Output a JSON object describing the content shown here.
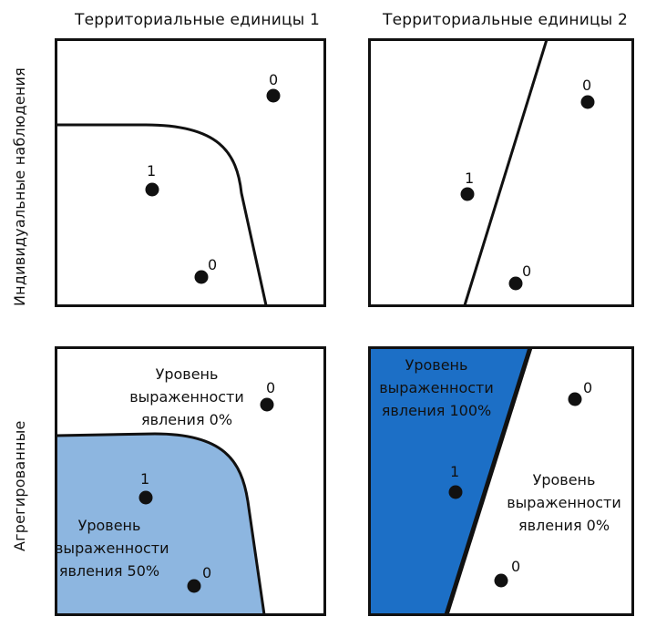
{
  "columns": {
    "col1": "Территориальные единицы 1",
    "col2": "Территориальные единицы 2"
  },
  "rows": {
    "row1": "Индивидуальные наблюдения",
    "row2": "Агрегированные"
  },
  "points": {
    "p1": "0",
    "p2": "1",
    "p3": "0",
    "p4": "0",
    "p5": "1",
    "p6": "0",
    "p7": "0",
    "p8": "1",
    "p9": "0",
    "p10": "0",
    "p11": "1",
    "p12": "0"
  },
  "regions": {
    "bl_top": [
      "Уровень",
      "выраженности",
      "явления 0%"
    ],
    "bl_fill": [
      "Уровень",
      "выраженности",
      "явления 50%"
    ],
    "br_fill": [
      "Уровень",
      "выраженности",
      "явления 100%"
    ],
    "br_white": [
      "Уровень",
      "выраженности",
      "явления 0%"
    ]
  },
  "colors": {
    "light_blue": "#8db6e0",
    "dark_blue": "#1c6fc6",
    "ink": "#111111"
  }
}
